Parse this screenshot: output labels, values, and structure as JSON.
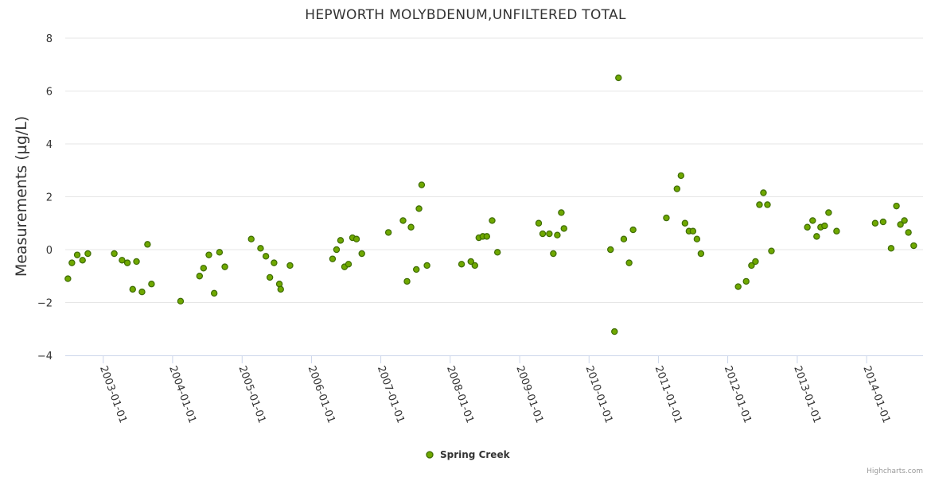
{
  "chart_data": {
    "type": "scatter",
    "title": "HEPWORTH MOLYBDENUM,UNFILTERED TOTAL",
    "xlabel": "",
    "ylabel": "Measurements (µg/L)",
    "ylim": [
      -4,
      8
    ],
    "yticks": [
      "8",
      "6",
      "4",
      "2",
      "0",
      "−2",
      "−4"
    ],
    "xlim": [
      "2002-06-15",
      "2014-10-25"
    ],
    "xticks": [
      "2003-01-01",
      "2004-01-01",
      "2005-01-01",
      "2006-01-01",
      "2007-01-01",
      "2008-01-01",
      "2009-01-01",
      "2010-01-01",
      "2011-01-01",
      "2012-01-01",
      "2013-01-01",
      "2014-01-01"
    ],
    "grid": true,
    "legend_position": "bottom-center",
    "series": [
      {
        "name": "Spring Creek",
        "color": "#6fa800",
        "points": [
          [
            "2002-06-29",
            -1.1
          ],
          [
            "2002-07-20",
            -0.5
          ],
          [
            "2002-08-17",
            -0.2
          ],
          [
            "2002-09-14",
            -0.4
          ],
          [
            "2002-10-12",
            -0.15
          ],
          [
            "2003-02-28",
            -0.15
          ],
          [
            "2003-04-10",
            -0.4
          ],
          [
            "2003-05-08",
            -0.5
          ],
          [
            "2003-06-05",
            -1.5
          ],
          [
            "2003-06-25",
            -0.45
          ],
          [
            "2003-07-24",
            -1.6
          ],
          [
            "2003-08-22",
            0.2
          ],
          [
            "2003-09-12",
            -1.3
          ],
          [
            "2004-02-12",
            -1.95
          ],
          [
            "2004-05-22",
            -1.0
          ],
          [
            "2004-06-12",
            -0.7
          ],
          [
            "2004-07-10",
            -0.2
          ],
          [
            "2004-08-07",
            -1.65
          ],
          [
            "2004-09-04",
            -0.1
          ],
          [
            "2004-10-02",
            -0.65
          ],
          [
            "2005-02-18",
            0.4
          ],
          [
            "2005-04-08",
            0.05
          ],
          [
            "2005-05-06",
            -0.25
          ],
          [
            "2005-05-27",
            -1.05
          ],
          [
            "2005-06-18",
            -0.5
          ],
          [
            "2005-07-16",
            -1.3
          ],
          [
            "2005-07-23",
            -1.5
          ],
          [
            "2005-09-10",
            -0.6
          ],
          [
            "2006-04-22",
            -0.35
          ],
          [
            "2006-05-13",
            0.0
          ],
          [
            "2006-06-03",
            0.35
          ],
          [
            "2006-06-24",
            -0.65
          ],
          [
            "2006-07-15",
            -0.55
          ],
          [
            "2006-08-05",
            0.45
          ],
          [
            "2006-08-26",
            0.4
          ],
          [
            "2006-09-23",
            -0.15
          ],
          [
            "2007-02-10",
            0.65
          ],
          [
            "2007-04-28",
            1.1
          ],
          [
            "2007-05-19",
            -1.2
          ],
          [
            "2007-06-09",
            0.85
          ],
          [
            "2007-07-07",
            -0.75
          ],
          [
            "2007-07-21",
            1.55
          ],
          [
            "2007-08-04",
            2.45
          ],
          [
            "2007-09-01",
            -0.6
          ],
          [
            "2008-03-01",
            -0.55
          ],
          [
            "2008-04-19",
            -0.45
          ],
          [
            "2008-05-10",
            -0.6
          ],
          [
            "2008-05-31",
            0.45
          ],
          [
            "2008-06-21",
            0.5
          ],
          [
            "2008-07-12",
            0.5
          ],
          [
            "2008-08-09",
            1.1
          ],
          [
            "2008-09-06",
            -0.1
          ],
          [
            "2009-04-11",
            1.0
          ],
          [
            "2009-05-02",
            0.6
          ],
          [
            "2009-06-06",
            0.6
          ],
          [
            "2009-06-27",
            -0.15
          ],
          [
            "2009-07-18",
            0.55
          ],
          [
            "2009-08-08",
            1.4
          ],
          [
            "2009-08-22",
            0.8
          ],
          [
            "2010-04-24",
            0.0
          ],
          [
            "2010-05-15",
            -3.1
          ],
          [
            "2010-06-05",
            6.5
          ],
          [
            "2010-07-03",
            0.4
          ],
          [
            "2010-07-31",
            -0.5
          ],
          [
            "2010-08-21",
            0.75
          ],
          [
            "2011-02-12",
            1.2
          ],
          [
            "2011-04-09",
            2.3
          ],
          [
            "2011-04-30",
            2.8
          ],
          [
            "2011-05-21",
            1.0
          ],
          [
            "2011-06-11",
            0.7
          ],
          [
            "2011-07-02",
            0.7
          ],
          [
            "2011-07-23",
            0.4
          ],
          [
            "2011-08-13",
            -0.15
          ],
          [
            "2012-02-25",
            -1.4
          ],
          [
            "2012-04-07",
            -1.2
          ],
          [
            "2012-05-05",
            -0.6
          ],
          [
            "2012-05-26",
            -0.45
          ],
          [
            "2012-06-16",
            1.7
          ],
          [
            "2012-07-07",
            2.15
          ],
          [
            "2012-07-28",
            1.7
          ],
          [
            "2012-08-18",
            -0.05
          ],
          [
            "2013-02-23",
            0.85
          ],
          [
            "2013-03-23",
            1.1
          ],
          [
            "2013-04-13",
            0.5
          ],
          [
            "2013-05-04",
            0.85
          ],
          [
            "2013-05-25",
            0.9
          ],
          [
            "2013-06-15",
            1.4
          ],
          [
            "2013-07-27",
            0.7
          ],
          [
            "2014-02-15",
            1.0
          ],
          [
            "2014-03-29",
            1.05
          ],
          [
            "2014-05-10",
            0.05
          ],
          [
            "2014-06-07",
            1.65
          ],
          [
            "2014-06-28",
            0.95
          ],
          [
            "2014-07-19",
            1.1
          ],
          [
            "2014-08-09",
            0.65
          ],
          [
            "2014-09-06",
            0.15
          ]
        ]
      }
    ]
  },
  "credits": "Highcharts.com"
}
